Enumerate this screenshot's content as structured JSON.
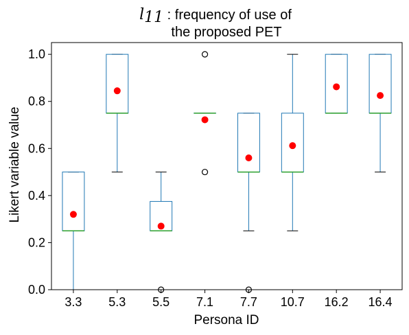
{
  "chart_data": {
    "type": "box",
    "title_math": "l",
    "title_math_sub": "11",
    "title_line1": " : frequency of use of",
    "title_line2": "the proposed PET",
    "xlabel": "Persona ID",
    "ylabel": "Likert variable value",
    "ylim": [
      0,
      1.05
    ],
    "yticks": [
      "0.0",
      "0.2",
      "0.4",
      "0.6",
      "0.8",
      "1.0"
    ],
    "ytick_values": [
      0,
      0.2,
      0.4,
      0.6,
      0.8,
      1.0
    ],
    "grid": false,
    "categories": [
      "3.3",
      "5.3",
      "5.5",
      "7.1",
      "7.7",
      "10.7",
      "16.2",
      "16.4"
    ],
    "boxes": [
      {
        "whisker_low": 0.0,
        "q1": 0.25,
        "median": 0.25,
        "q3": 0.5,
        "whisker_high": 0.5,
        "mean": 0.32,
        "outliers": []
      },
      {
        "whisker_low": 0.5,
        "q1": 0.75,
        "median": 0.75,
        "q3": 1.0,
        "whisker_high": 1.0,
        "mean": 0.845,
        "outliers": []
      },
      {
        "whisker_low": 0.25,
        "q1": 0.25,
        "median": 0.25,
        "q3": 0.375,
        "whisker_high": 0.5,
        "mean": 0.27,
        "outliers": [
          0.0
        ]
      },
      {
        "whisker_low": 0.75,
        "q1": 0.75,
        "median": 0.75,
        "q3": 0.75,
        "whisker_high": 0.75,
        "mean": 0.722,
        "outliers": [
          0.5,
          1.0
        ]
      },
      {
        "whisker_low": 0.25,
        "q1": 0.5,
        "median": 0.5,
        "q3": 0.75,
        "whisker_high": 0.75,
        "mean": 0.56,
        "outliers": [
          0.0
        ]
      },
      {
        "whisker_low": 0.25,
        "q1": 0.5,
        "median": 0.5,
        "q3": 0.75,
        "whisker_high": 1.0,
        "mean": 0.612,
        "outliers": []
      },
      {
        "whisker_low": 0.75,
        "q1": 0.75,
        "median": 0.75,
        "q3": 1.0,
        "whisker_high": 1.0,
        "mean": 0.862,
        "outliers": []
      },
      {
        "whisker_low": 0.5,
        "q1": 0.75,
        "median": 0.75,
        "q3": 1.0,
        "whisker_high": 1.0,
        "mean": 0.825,
        "outliers": []
      }
    ],
    "colors": {
      "box": "#1f77b4",
      "median": "#2ca02c",
      "mean": "#ff0000",
      "outlier": "#000000",
      "axes": "#000000"
    }
  }
}
